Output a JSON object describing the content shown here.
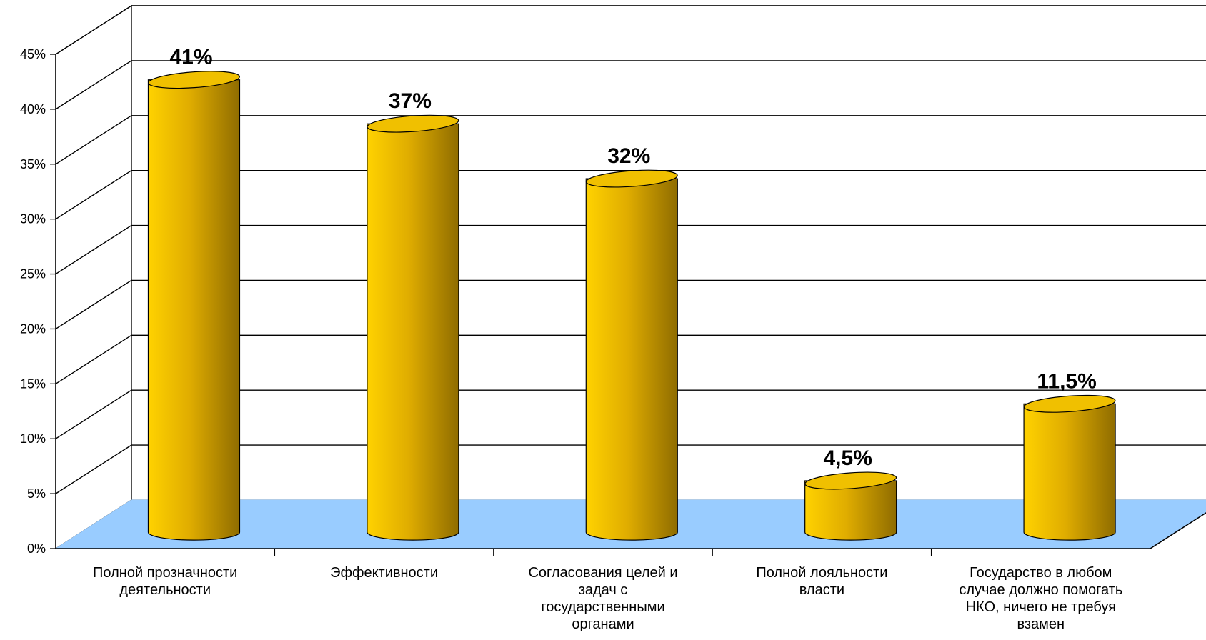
{
  "chart_data": {
    "type": "bar",
    "style": "3d-cylinder",
    "categories": [
      [
        "Полной прозначности",
        "деятельности"
      ],
      [
        "Эффективности"
      ],
      [
        "Согласования целей и",
        "задач с",
        "государственными",
        "органами"
      ],
      [
        "Полной лояльности",
        "власти"
      ],
      [
        "Государство в любом",
        "случае должно помогать",
        "НКО, ничего не требуя",
        "взамен"
      ]
    ],
    "values": [
      41,
      37,
      32,
      4.5,
      11.5
    ],
    "data_labels": [
      "41%",
      "37%",
      "32%",
      "4,5%",
      "11,5%"
    ],
    "y_ticks": [
      "0%",
      "5%",
      "10%",
      "15%",
      "20%",
      "25%",
      "30%",
      "35%",
      "40%",
      "45%"
    ],
    "ylim": [
      0,
      45
    ],
    "grid": true,
    "legend": "none",
    "colors": {
      "bar_light": "#ffd200",
      "bar_mid": "#e0ad00",
      "bar_dark": "#8f6c00",
      "top_face": "#f0c000",
      "floor": "#99ccff",
      "gridline": "#000000",
      "wall": "#ffffff"
    }
  }
}
